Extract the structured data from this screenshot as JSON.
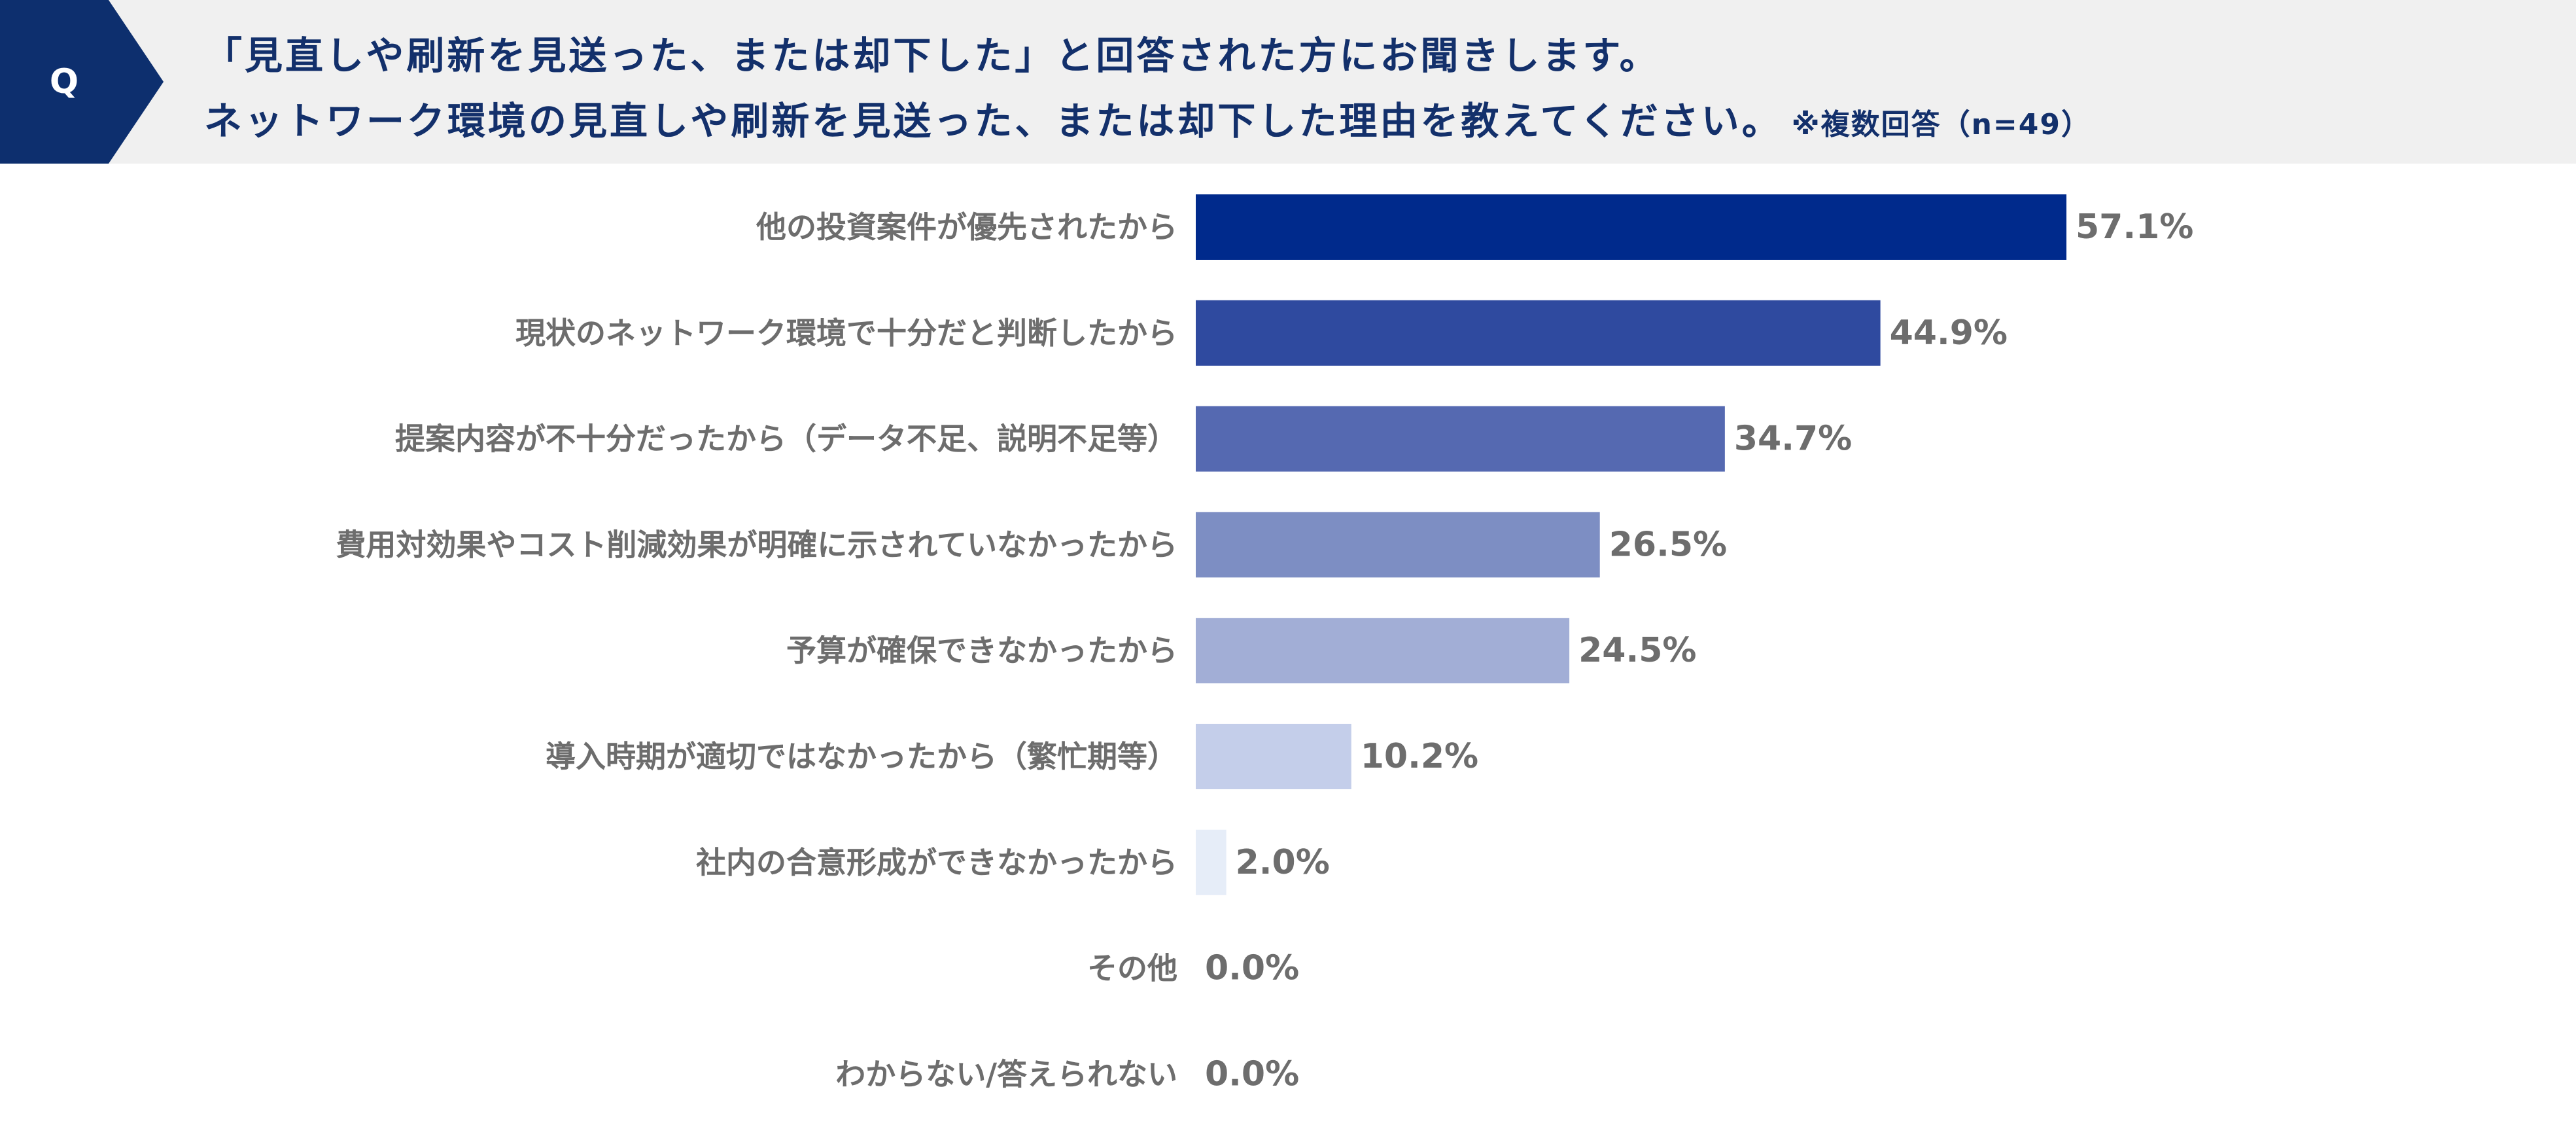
{
  "header": {
    "badge": "Q",
    "line1": "「見直しや刷新を見送った、または却下した」と回答された方にお聞きします。",
    "line2": "ネットワーク環境の見直しや刷新を見送った、または却下した理由を教えてください。",
    "note": "※複数回答（n=49）",
    "badge_color": "#0d2f6e"
  },
  "chart_data": {
    "type": "bar",
    "orientation": "horizontal",
    "categories": [
      "他の投資案件が優先されたから",
      "現状のネットワーク環境で十分だと判断したから",
      "提案内容が不十分だったから（データ不足、説明不足等）",
      "費用対効果やコスト削減効果が明確に示されていなかったから",
      "予算が確保できなかったから",
      "導入時期が適切ではなかったから（繁忙期等）",
      "社内の合意形成ができなかったから",
      "その他",
      "わからない/答えられない"
    ],
    "values": [
      57.1,
      44.9,
      34.7,
      26.5,
      24.5,
      10.2,
      2.0,
      0.0,
      0.0
    ],
    "value_labels": [
      "57.1%",
      "44.9%",
      "34.7%",
      "26.5%",
      "24.5%",
      "10.2%",
      "2.0%",
      "0.0%",
      "0.0%"
    ],
    "colors": [
      "#002a8c",
      "#2f4a9f",
      "#5569b1",
      "#7d8ec3",
      "#a2aed6",
      "#c4ceea",
      "#e6edf8",
      "#eef2fa",
      "#eef2fa"
    ],
    "unit": "%"
  }
}
